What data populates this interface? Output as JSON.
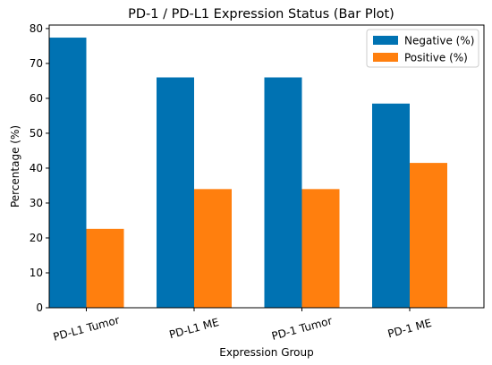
{
  "chart_data": {
    "type": "bar",
    "title": "PD-1 / PD-L1 Expression Status (Bar Plot)",
    "xlabel": "Expression Group",
    "ylabel": "Percentage (%)",
    "categories": [
      "PD-L1 Tumor",
      "PD-L1 ME",
      "PD-1 Tumor",
      "PD-1 ME"
    ],
    "series": [
      {
        "name": "Negative (%)",
        "color": "#0072b2",
        "values": [
          77.4,
          66.0,
          66.0,
          58.5
        ]
      },
      {
        "name": "Positive (%)",
        "color": "#ff7f0e",
        "values": [
          22.6,
          34.0,
          34.0,
          41.5
        ]
      }
    ],
    "ylim": [
      0,
      81
    ],
    "yticks": [
      0,
      10,
      20,
      30,
      40,
      50,
      60,
      70,
      80
    ],
    "grid": false,
    "legend": "top-right"
  }
}
